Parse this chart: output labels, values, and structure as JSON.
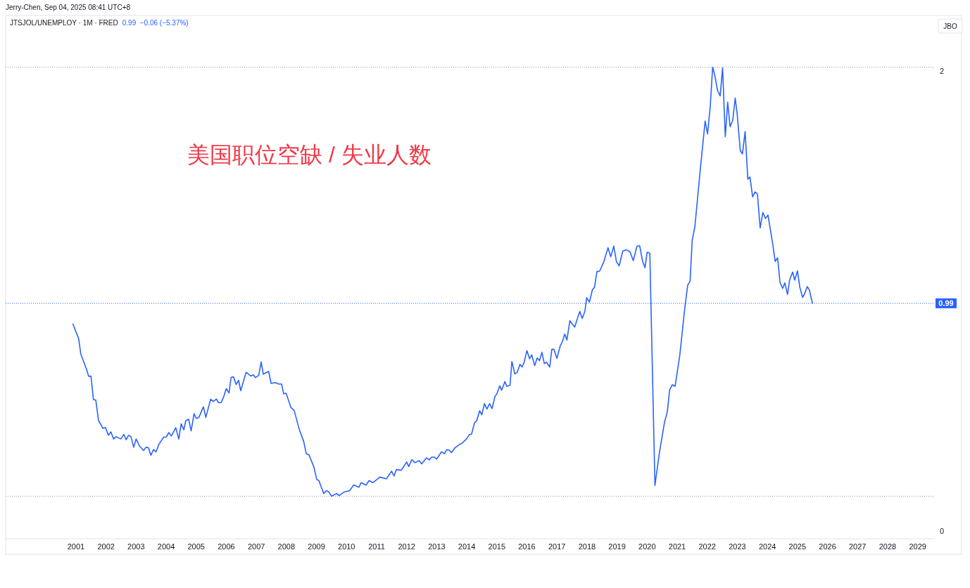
{
  "chart_data": {
    "type": "line",
    "title": "JTSJOL/UNEMPLOY · 1M · FRED",
    "annotations": [
      "Jerry-Chen, Sep 04, 2025 08:41 UTC+8",
      "0.99  −0.06 (−5.37%)",
      "美国职位空缺 / 失业人数",
      "JBO"
    ],
    "x": [
      2000.9,
      2001.09,
      2001.16,
      2001.36,
      2001.42,
      2001.5,
      2001.58,
      2001.66,
      2001.75,
      2001.9,
      2001.98,
      2002.08,
      2002.16,
      2002.25,
      2002.33,
      2002.49,
      2002.59,
      2002.67,
      2002.75,
      2002.83,
      2002.92,
      2003.0,
      2003.11,
      2003.25,
      2003.33,
      2003.41,
      2003.49,
      2003.58,
      2003.66,
      2003.76,
      2003.92,
      2004.0,
      2004.09,
      2004.17,
      2004.32,
      2004.42,
      2004.5,
      2004.59,
      2004.65,
      2004.75,
      2004.83,
      2004.93,
      2005.0,
      2005.09,
      2005.24,
      2005.32,
      2005.48,
      2005.57,
      2005.67,
      2005.74,
      2005.83,
      2005.92,
      2006.0,
      2006.09,
      2006.16,
      2006.24,
      2006.33,
      2006.41,
      2006.48,
      2006.66,
      2006.82,
      2006.9,
      2006.97,
      2007.08,
      2007.16,
      2007.23,
      2007.41,
      2007.49,
      2007.64,
      2007.74,
      2007.84,
      2007.91,
      2007.99,
      2008.15,
      2008.26,
      2008.42,
      2008.58,
      2008.66,
      2008.75,
      2008.91,
      2009.01,
      2009.08,
      2009.24,
      2009.33,
      2009.41,
      2009.5,
      2009.67,
      2009.75,
      2009.93,
      2010.1,
      2010.24,
      2010.41,
      2010.49,
      2010.65,
      2010.75,
      2010.88,
      2011.11,
      2011.33,
      2011.5,
      2011.58,
      2011.66,
      2011.82,
      2012.0,
      2012.07,
      2012.17,
      2012.28,
      2012.42,
      2012.5,
      2012.66,
      2012.75,
      2012.83,
      2012.92,
      2013.0,
      2013.16,
      2013.26,
      2013.33,
      2013.41,
      2013.49,
      2013.61,
      2013.77,
      2013.85,
      2013.99,
      2014.09,
      2014.16,
      2014.26,
      2014.33,
      2014.43,
      2014.5,
      2014.59,
      2014.67,
      2014.76,
      2014.84,
      2014.94,
      2015.0,
      2015.1,
      2015.16,
      2015.27,
      2015.33,
      2015.44,
      2015.5,
      2015.6,
      2015.68,
      2015.77,
      2015.84,
      2015.91,
      2016.0,
      2016.09,
      2016.16,
      2016.26,
      2016.34,
      2016.42,
      2016.5,
      2016.58,
      2016.65,
      2016.76,
      2016.83,
      2016.9,
      2017.0,
      2017.11,
      2017.18,
      2017.26,
      2017.33,
      2017.43,
      2017.59,
      2017.76,
      2017.84,
      2017.93,
      2017.99,
      2018.08,
      2018.18,
      2018.25,
      2018.33,
      2018.42,
      2018.56,
      2018.7,
      2018.79,
      2018.89,
      2018.98,
      2019.07,
      2019.19,
      2019.31,
      2019.43,
      2019.54,
      2019.66,
      2019.75,
      2019.85,
      2019.93,
      2020.0,
      2020.09,
      2020.26,
      2020.41,
      2020.58,
      2020.67,
      2020.75,
      2020.84,
      2020.93,
      2021.09,
      2021.24,
      2021.35,
      2021.43,
      2021.5,
      2021.59,
      2021.75,
      2021.93,
      2022.01,
      2022.1,
      2022.18,
      2022.25,
      2022.34,
      2022.43,
      2022.51,
      2022.6,
      2022.68,
      2022.76,
      2022.85,
      2022.93,
      2023.0,
      2023.1,
      2023.17,
      2023.26,
      2023.35,
      2023.42,
      2023.51,
      2023.59,
      2023.67,
      2023.76,
      2023.85,
      2023.94,
      2024.02,
      2024.18,
      2024.26,
      2024.34,
      2024.42,
      2024.51,
      2024.58,
      2024.67,
      2024.74,
      2024.84,
      2024.91,
      2025.0,
      2025.08,
      2025.17,
      2025.23,
      2025.33,
      2025.4,
      2025.5
    ],
    "series": [
      {
        "color": "#2962ff",
        "values": [
          0.9,
          0.836,
          0.77,
          0.7,
          0.673,
          0.673,
          0.572,
          0.569,
          0.48,
          0.446,
          0.45,
          0.416,
          0.431,
          0.4,
          0.41,
          0.4,
          0.42,
          0.397,
          0.416,
          0.41,
          0.364,
          0.4,
          0.37,
          0.35,
          0.364,
          0.362,
          0.329,
          0.354,
          0.344,
          0.377,
          0.408,
          0.408,
          0.428,
          0.413,
          0.449,
          0.4,
          0.466,
          0.44,
          0.479,
          0.486,
          0.435,
          0.51,
          0.489,
          0.494,
          0.54,
          0.494,
          0.573,
          0.563,
          0.574,
          0.558,
          0.558,
          0.586,
          0.619,
          0.6,
          0.668,
          0.67,
          0.637,
          0.655,
          0.61,
          0.69,
          0.674,
          0.679,
          0.667,
          0.677,
          0.735,
          0.682,
          0.694,
          0.642,
          0.645,
          0.639,
          0.639,
          0.596,
          0.599,
          0.537,
          0.524,
          0.445,
          0.387,
          0.336,
          0.331,
          0.28,
          0.224,
          0.219,
          0.163,
          0.175,
          0.17,
          0.151,
          0.163,
          0.154,
          0.17,
          0.175,
          0.2,
          0.19,
          0.21,
          0.199,
          0.219,
          0.21,
          0.234,
          0.227,
          0.26,
          0.239,
          0.267,
          0.264,
          0.3,
          0.28,
          0.31,
          0.297,
          0.306,
          0.292,
          0.318,
          0.309,
          0.321,
          0.321,
          0.313,
          0.344,
          0.336,
          0.353,
          0.352,
          0.341,
          0.362,
          0.377,
          0.382,
          0.4,
          0.42,
          0.421,
          0.471,
          0.479,
          0.523,
          0.505,
          0.554,
          0.53,
          0.554,
          0.532,
          0.585,
          0.596,
          0.631,
          0.612,
          0.65,
          0.629,
          0.633,
          0.737,
          0.683,
          0.69,
          0.725,
          0.713,
          0.734,
          0.784,
          0.749,
          0.766,
          0.719,
          0.752,
          0.741,
          0.777,
          0.728,
          0.734,
          0.713,
          0.79,
          0.79,
          0.751,
          0.805,
          0.823,
          0.856,
          0.83,
          0.914,
          0.887,
          0.955,
          0.924,
          0.955,
          1.015,
          0.995,
          1.049,
          1.06,
          1.128,
          1.13,
          1.171,
          1.232,
          1.193,
          1.239,
          1.171,
          1.153,
          1.217,
          1.223,
          1.214,
          1.176,
          1.238,
          1.241,
          1.172,
          1.145,
          1.212,
          1.209,
          0.198,
          0.342,
          0.474,
          0.517,
          0.614,
          0.636,
          0.629,
          0.767,
          0.954,
          1.069,
          1.087,
          1.265,
          1.325,
          1.547,
          1.783,
          1.727,
          1.846,
          2.017,
          1.983,
          1.917,
          1.892,
          2.014,
          1.715,
          1.865,
          1.758,
          1.787,
          1.883,
          1.808,
          1.653,
          1.64,
          1.737,
          1.53,
          1.54,
          1.453,
          1.475,
          1.465,
          1.318,
          1.385,
          1.359,
          1.374,
          1.247,
          1.172,
          1.188,
          1.081,
          1.055,
          1.079,
          1.029,
          1.091,
          1.126,
          1.091,
          1.131,
          1.06,
          1.016,
          1.029,
          1.063,
          1.047,
          0.99
        ]
      }
    ],
    "xlim": [
      1998.66,
      2029.57
    ],
    "ylim": [
      -0.034,
      2.242
    ],
    "xticks": [
      2001,
      2002,
      2003,
      2004,
      2005,
      2006,
      2007,
      2008,
      2009,
      2010,
      2011,
      2012,
      2013,
      2014,
      2015,
      2016,
      2017,
      2018,
      2019,
      2020,
      2021,
      2022,
      2023,
      2024,
      2025,
      2026,
      2027,
      2028,
      2029
    ],
    "yticks": [
      0,
      2
    ],
    "ref_lines": [
      {
        "axis": "y",
        "value": 2.017,
        "label": null,
        "color": "#9598a1",
        "line_style": "dotted"
      },
      {
        "axis": "y",
        "value": 0.99,
        "label": "0.99",
        "color": "#2962ff",
        "line_style": "dotted"
      },
      {
        "axis": "y",
        "value": 0.151,
        "label": null,
        "color": "#9598a1",
        "line_style": "dotted"
      }
    ]
  }
}
